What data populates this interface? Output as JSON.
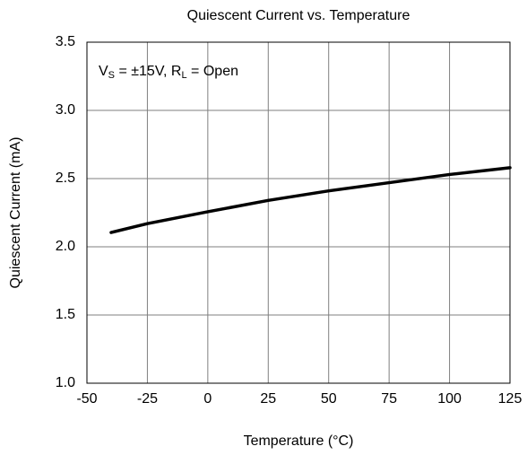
{
  "chart_data": {
    "type": "line",
    "title": "Quiescent Current vs. Temperature",
    "xlabel": "Temperature (°C)",
    "ylabel": "Quiescent Current (mA)",
    "annotation": [
      "V",
      "S",
      " = ±15V, R",
      "L",
      " = Open"
    ],
    "x": [
      -40,
      -25,
      0,
      25,
      50,
      75,
      100,
      125
    ],
    "series": [
      {
        "name": "Quiescent Current",
        "color": "#000000",
        "values": [
          2.105,
          2.17,
          2.257,
          2.34,
          2.41,
          2.47,
          2.53,
          2.58
        ]
      }
    ],
    "xlim": [
      -50,
      125
    ],
    "xticks": [
      -50,
      -25,
      0,
      25,
      50,
      75,
      100,
      125
    ],
    "ylim": [
      1,
      3.5
    ],
    "yticks": [
      {
        "value": 1,
        "label": "1.0"
      },
      1.5,
      {
        "value": 2,
        "label": "2.0"
      },
      2.5,
      {
        "value": 3,
        "label": "3.0"
      },
      3.5
    ],
    "grid": true
  }
}
